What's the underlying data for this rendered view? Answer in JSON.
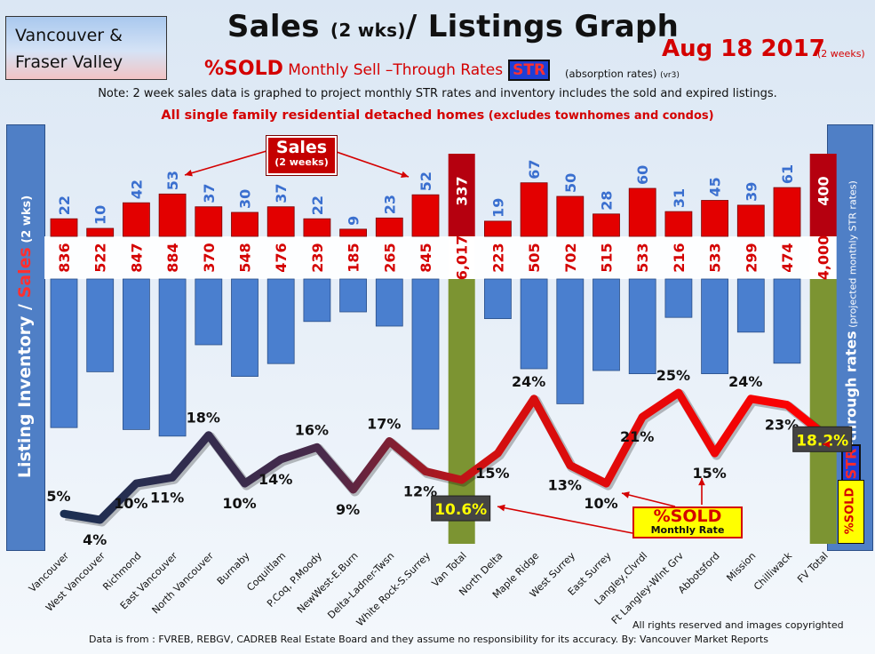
{
  "header": {
    "region_line1": "Vancouver &",
    "region_line2": "Fraser Valley",
    "title_a": "Sales ",
    "title_b": "(2 wks)",
    "title_c": "/ Listings Graph",
    "date": "Aug 18 2017",
    "date_note": "(2 weeks)",
    "sold_big": "%SOLD",
    "subtitle_rest": " Monthly Sell –Through Rates",
    "str_tag": "STR",
    "absorption": "(absorption rates)",
    "version": "(vr3)",
    "note": "Note: 2 week sales data is graphed to project monthly STR rates and inventory includes the sold and expired listings.",
    "scope_a": "All single family residential detached homes",
    "scope_b": " (excludes townhomes and condos)"
  },
  "side_labels": {
    "left_a": "Listing Inventory / ",
    "left_b": "Sales",
    "left_c": " (2  wks)",
    "right_a": "Sell-through rates",
    "right_b": "  (projected monthly STR rates)",
    "badge": "%SOLD",
    "badge_str": "STR"
  },
  "callouts": {
    "sales_title": "Sales",
    "sales_sub": "(2 weeks)",
    "sold_title": "%SOLD",
    "sold_sub": "Monthly Rate"
  },
  "footer": {
    "rights": "All rights reserved and  images copyrighted",
    "source": "Data is from : FVREB, REBGV, CADREB Real Estate Board and they assume no responsibility for its accuracy. By: Vancouver Market Reports"
  },
  "colors": {
    "sales_bar": "#e30000",
    "listing_bar": "#4a7fcf",
    "total_bar": "#7c9432",
    "total_sales_bar": "#b5000f",
    "sold_label": "#d40000",
    "sales_label": "#3a6fcf",
    "line_low": "#1b2f52",
    "line_high": "#ff0000"
  },
  "chart_data": {
    "type": "bar",
    "categories": [
      "Vancouver",
      "West Vancouver",
      "Richmond",
      "East Vancouver",
      "North Vancouver",
      "Burnaby",
      "Coquitlam",
      "P.Coq, P.Moody",
      "NewWest-E.Burn",
      "Delta-Ladner-Twsn",
      "White Rock-S.Surrey",
      "Van Total",
      "North Delta",
      "Maple Ridge",
      "West Surrey",
      "East Surrey",
      "Langley,Clvrdl",
      "Ft Langley-Wlnt Grv",
      "Abbotsford",
      "Mission",
      "Chilliwack",
      "FV Total"
    ],
    "series": [
      {
        "name": "Sales (2 weeks)",
        "values": [
          22,
          10,
          42,
          53,
          37,
          30,
          37,
          22,
          9,
          23,
          52,
          337,
          19,
          67,
          50,
          28,
          60,
          31,
          45,
          39,
          61,
          400
        ]
      },
      {
        "values": [
          836,
          522,
          847,
          884,
          370,
          548,
          476,
          239,
          185,
          265,
          845,
          6017,
          223,
          505,
          702,
          515,
          533,
          216,
          533,
          299,
          474,
          4000
        ]
      },
      {
        "values": [
          5,
          4,
          10,
          11,
          18,
          10,
          14,
          16,
          9,
          17,
          12,
          10.6,
          15,
          24,
          13,
          10,
          21,
          25,
          15,
          24,
          23,
          18.2
        ]
      }
    ],
    "inventory_labels": [
      "836",
      "522",
      "847",
      "884",
      "370",
      "548",
      "476",
      "239",
      "185",
      "265",
      "845",
      "6,017",
      "223",
      "505",
      "702",
      "515",
      "533",
      "216",
      "533",
      "299",
      "474",
      "4,000"
    ],
    "sales_labels": [
      "22",
      "10",
      "42",
      "53",
      "37",
      "30",
      "37",
      "22",
      "9",
      "23",
      "52",
      "337",
      "19",
      "67",
      "50",
      "28",
      "60",
      "31",
      "45",
      "39",
      "61",
      "400"
    ],
    "sold_labels": [
      "5%",
      "4%",
      "10%",
      "11%",
      "18%",
      "10%",
      "14%",
      "16%",
      "9%",
      "17%",
      "12%",
      "10.6%",
      "15%",
      "24%",
      "13%",
      "10%",
      "21%",
      "25%",
      "15%",
      "24%",
      "23%",
      "18.2%"
    ],
    "highlighted": [
      "Van Total",
      "FV Total"
    ]
  }
}
